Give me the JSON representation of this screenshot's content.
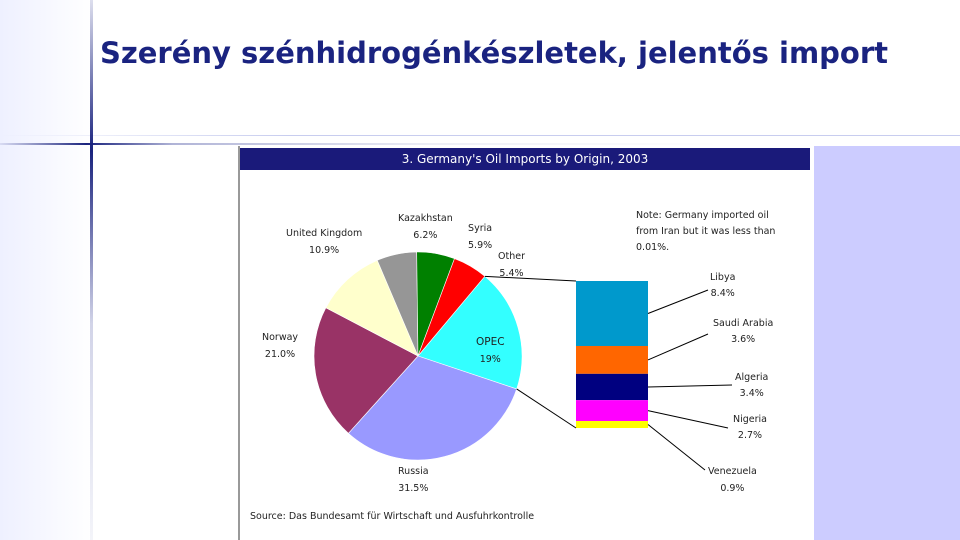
{
  "slide": {
    "title": "Szerény szénhidrogénkészletek, jelentős import"
  },
  "colors": {
    "title": "#1a2380",
    "chart_header": "#1a1a7a",
    "right_panel": "#ccccff"
  },
  "chart_data": {
    "type": "pie",
    "title": "3. Germany's Oil Imports by Origin, 2003",
    "slices": [
      {
        "name": "OPEC",
        "value_label": "19%",
        "value": 19.0,
        "color": "#33ffff"
      },
      {
        "name": "Russia",
        "value_label": "31.5%",
        "value": 31.5,
        "color": "#9999ff"
      },
      {
        "name": "Norway",
        "value_label": "21.0%",
        "value": 21.0,
        "color": "#993366"
      },
      {
        "name": "United Kingdom",
        "value_label": "10.9%",
        "value": 10.9,
        "color": "#ffffcc"
      },
      {
        "name": "Kazakhstan",
        "value_label": "6.2%",
        "value": 6.2,
        "color": "#969696"
      },
      {
        "name": "Syria",
        "value_label": "5.9%",
        "value": 5.9,
        "color": "#008000"
      },
      {
        "name": "Other",
        "value_label": "5.4%",
        "value": 5.4,
        "color": "#ff0000"
      }
    ],
    "opec_breakdown": [
      {
        "name": "Libya",
        "value_label": "8.4%",
        "value": 8.4,
        "color": "#0099cc"
      },
      {
        "name": "Saudi Arabia",
        "value_label": "3.6%",
        "value": 3.6,
        "color": "#ff6600"
      },
      {
        "name": "Algeria",
        "value_label": "3.4%",
        "value": 3.4,
        "color": "#000080"
      },
      {
        "name": "Nigeria",
        "value_label": "2.7%",
        "value": 2.7,
        "color": "#ff00ff"
      },
      {
        "name": "Venezuela",
        "value_label": "0.9%",
        "value": 0.9,
        "color": "#ffff00"
      }
    ],
    "note": "Note: Germany imported oil from Iran but it was less than 0.01%.",
    "source": "Source: Das Bundesamt für Wirtschaft und Ausfuhrkontrolle"
  }
}
